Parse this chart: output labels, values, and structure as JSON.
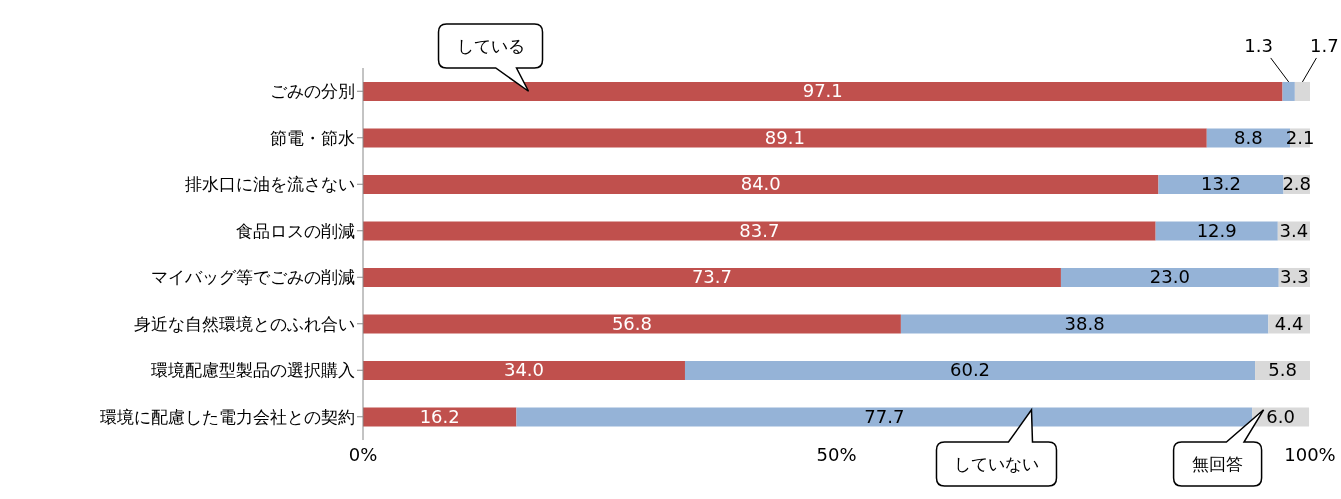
{
  "chart_data": {
    "type": "bar",
    "orientation": "horizontal",
    "stacked": true,
    "categories": [
      "ごみの分別",
      "節電・節水",
      "排水口に油を流さない",
      "食品ロスの削減",
      "マイバッグ等でごみの削減",
      "身近な自然環境とのふれ合い",
      "環境配慮型製品の選択購入",
      "環境に配慮した電力会社との契約"
    ],
    "series": [
      {
        "name": "している",
        "color": "#c0504d",
        "values": [
          97.1,
          89.1,
          84.0,
          83.7,
          73.7,
          56.8,
          34.0,
          16.2
        ],
        "value_labels": [
          "97.1",
          "89.1",
          "84.0",
          "83.7",
          "73.7",
          "56.8",
          "34.0",
          "16.2"
        ]
      },
      {
        "name": "していない",
        "color": "#95b3d7",
        "values": [
          1.3,
          8.8,
          13.2,
          12.9,
          23.0,
          38.8,
          60.2,
          77.7
        ],
        "value_labels": [
          "1.3",
          "8.8",
          "13.2",
          "12.9",
          "23.0",
          "38.8",
          "60.2",
          "77.7"
        ]
      },
      {
        "name": "無回答",
        "color": "#d9d9d9",
        "values": [
          1.7,
          2.1,
          2.8,
          3.4,
          3.3,
          4.4,
          5.8,
          6.0
        ],
        "value_labels": [
          "1.7",
          "2.1",
          "2.8",
          "3.4",
          "3.3",
          "4.4",
          "5.8",
          "6.0"
        ]
      }
    ],
    "xlim": [
      0,
      100
    ],
    "xticks": [
      {
        "value": 0,
        "label": "0%"
      },
      {
        "value": 50,
        "label": "50%"
      },
      {
        "value": 100,
        "label": "100%"
      }
    ]
  }
}
